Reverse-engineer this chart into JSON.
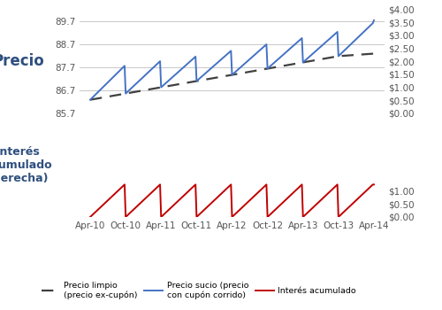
{
  "x_labels": [
    "Apr-10",
    "Oct-10",
    "Apr-11",
    "Oct-11",
    "Apr-12",
    "Oct-12",
    "Apr-13",
    "Oct-13",
    "Apr-14"
  ],
  "x_positions": [
    0,
    1,
    2,
    3,
    4,
    5,
    6,
    7,
    8
  ],
  "clean_price_x": [
    0,
    1,
    2,
    3,
    4,
    5,
    6,
    7,
    8
  ],
  "clean_price_y": [
    86.28,
    86.55,
    86.82,
    87.09,
    87.36,
    87.63,
    87.9,
    88.17,
    88.28
  ],
  "dirty_price_x": [
    0,
    0.97,
    1,
    1.97,
    2,
    2.97,
    3,
    3.97,
    4,
    4.97,
    5,
    5.97,
    6,
    6.97,
    7,
    7.97,
    8
  ],
  "dirty_price_y": [
    86.28,
    87.75,
    86.55,
    87.95,
    86.82,
    88.15,
    87.09,
    88.4,
    87.36,
    88.68,
    87.63,
    88.95,
    87.9,
    89.22,
    88.17,
    89.6,
    89.72
  ],
  "accrued_x": [
    0,
    0.97,
    1,
    1.97,
    2,
    2.97,
    3,
    3.97,
    4,
    4.97,
    5,
    5.97,
    6,
    6.97,
    7,
    7.97,
    8
  ],
  "accrued_y": [
    0,
    1.25,
    0,
    1.25,
    0,
    1.25,
    0,
    1.25,
    0,
    1.25,
    0,
    1.25,
    0,
    1.25,
    0,
    1.25,
    1.25
  ],
  "left_ylim": [
    85.7,
    90.2
  ],
  "left_yticks": [
    85.7,
    86.7,
    87.7,
    88.7,
    89.7
  ],
  "right_ylim": [
    0.0,
    4.0
  ],
  "right_yticks": [
    0.0,
    0.5,
    1.0,
    1.5,
    2.0,
    2.5,
    3.0,
    3.5,
    4.0
  ],
  "right_yticklabels": [
    "$0.00",
    "$0.50",
    "$1.00",
    "$1.50",
    "$2.00",
    "$2.50",
    "$3.00",
    "$3.50",
    "$4.00"
  ],
  "ylabel_price": "Precio",
  "ylabel_accrued": "Interés\nacumulado\n(derecha)",
  "clean_price_color": "#404040",
  "dirty_price_color": "#4472C4",
  "accrued_color": "#C00000",
  "background_color": "#FFFFFF",
  "grid_color": "#C8C8C8",
  "legend_items": [
    {
      "label": "Precio limpio\n(precio ex-cupón)",
      "color": "#404040",
      "linestyle": "--"
    },
    {
      "label": "Precio sucio (precio\ncon cupón corrido)",
      "color": "#4472C4",
      "linestyle": "-"
    },
    {
      "label": "Interés acumulado",
      "color": "#C00000",
      "linestyle": "-"
    }
  ],
  "figsize": [
    5.0,
    3.5
  ],
  "dpi": 100
}
